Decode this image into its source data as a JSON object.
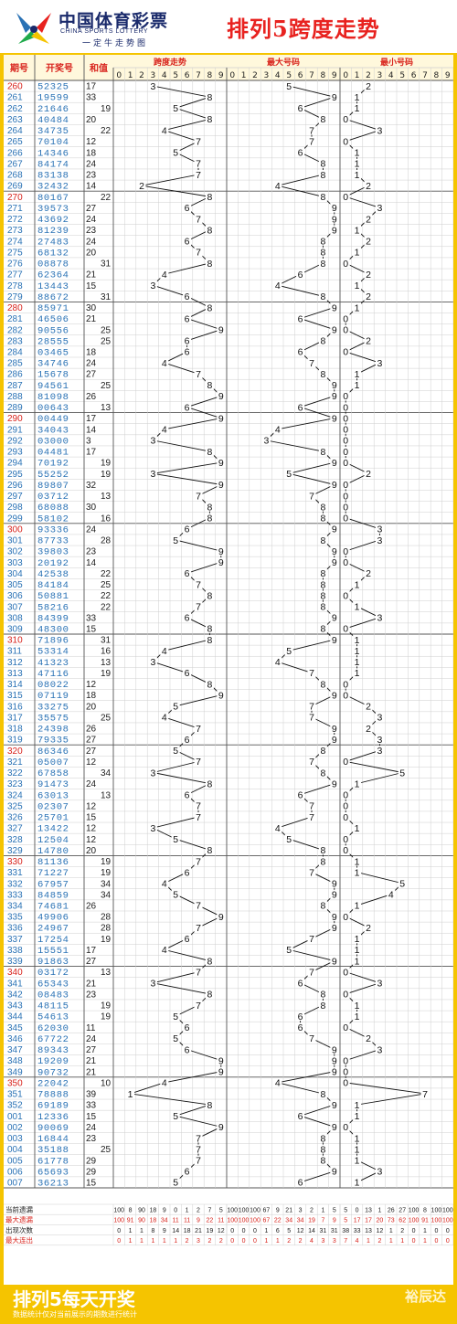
{
  "header": {
    "brand_cn": "中国体育彩票",
    "brand_en": "CHINA SPORTS LOTTERY",
    "slogan": "一定牛走势图",
    "title": "排列5跨度走势"
  },
  "footer": {
    "title": "排列5每天开奖",
    "note": "数据统计仅对当前展示的期数进行统计",
    "brand": "裕辰达"
  },
  "colors": {
    "accent": "#f5c400",
    "issue_blue": "#2a72b5",
    "issue_red": "#d8231c",
    "grid": "#cfcfcf",
    "dark": "#222222"
  },
  "chart_data": {
    "type": "table",
    "title": "排列5跨度走势",
    "columns": [
      "期号",
      "开奖号",
      "和值",
      "跨度走势",
      "最大号码",
      "最小号码"
    ],
    "digit_headers": [
      "0",
      "1",
      "2",
      "3",
      "4",
      "5",
      "6",
      "7",
      "8",
      "9"
    ],
    "rows": [
      {
        "issue": "260",
        "number": "52325",
        "sum": 17,
        "span": 3,
        "max": 5,
        "min": 2
      },
      {
        "issue": "261",
        "number": "19599",
        "sum": 33,
        "span": 8,
        "max": 9,
        "min": 1
      },
      {
        "issue": "262",
        "number": "21646",
        "sum": 19,
        "span": 5,
        "max": 6,
        "min": 1
      },
      {
        "issue": "263",
        "number": "40484",
        "sum": 20,
        "span": 8,
        "max": 8,
        "min": 0
      },
      {
        "issue": "264",
        "number": "34735",
        "sum": 22,
        "span": 4,
        "max": 7,
        "min": 3
      },
      {
        "issue": "265",
        "number": "70104",
        "sum": 12,
        "span": 7,
        "max": 7,
        "min": 0
      },
      {
        "issue": "266",
        "number": "14346",
        "sum": 18,
        "span": 5,
        "max": 6,
        "min": 1
      },
      {
        "issue": "267",
        "number": "84174",
        "sum": 24,
        "span": 7,
        "max": 8,
        "min": 1
      },
      {
        "issue": "268",
        "number": "83138",
        "sum": 23,
        "span": 7,
        "max": 8,
        "min": 1
      },
      {
        "issue": "269",
        "number": "32432",
        "sum": 14,
        "span": 2,
        "max": 4,
        "min": 2
      },
      {
        "issue": "270",
        "number": "80167",
        "sum": 22,
        "span": 8,
        "max": 8,
        "min": 0
      },
      {
        "issue": "271",
        "number": "39573",
        "sum": 27,
        "span": 6,
        "max": 9,
        "min": 3
      },
      {
        "issue": "272",
        "number": "43692",
        "sum": 24,
        "span": 7,
        "max": 9,
        "min": 2
      },
      {
        "issue": "273",
        "number": "81239",
        "sum": 23,
        "span": 8,
        "max": 9,
        "min": 1
      },
      {
        "issue": "274",
        "number": "27483",
        "sum": 24,
        "span": 6,
        "max": 8,
        "min": 2
      },
      {
        "issue": "275",
        "number": "68132",
        "sum": 20,
        "span": 7,
        "max": 8,
        "min": 1
      },
      {
        "issue": "276",
        "number": "08878",
        "sum": 31,
        "span": 8,
        "max": 8,
        "min": 0
      },
      {
        "issue": "277",
        "number": "62364",
        "sum": 21,
        "span": 4,
        "max": 6,
        "min": 2
      },
      {
        "issue": "278",
        "number": "13443",
        "sum": 15,
        "span": 3,
        "max": 4,
        "min": 1
      },
      {
        "issue": "279",
        "number": "88672",
        "sum": 31,
        "span": 6,
        "max": 8,
        "min": 2
      },
      {
        "issue": "280",
        "number": "85971",
        "sum": 30,
        "span": 8,
        "max": 9,
        "min": 1
      },
      {
        "issue": "281",
        "number": "46506",
        "sum": 21,
        "span": 6,
        "max": 6,
        "min": 0
      },
      {
        "issue": "282",
        "number": "90556",
        "sum": 25,
        "span": 9,
        "max": 9,
        "min": 0
      },
      {
        "issue": "283",
        "number": "28555",
        "sum": 25,
        "span": 6,
        "max": 8,
        "min": 2
      },
      {
        "issue": "284",
        "number": "03465",
        "sum": 18,
        "span": 6,
        "max": 6,
        "min": 0
      },
      {
        "issue": "285",
        "number": "34746",
        "sum": 24,
        "span": 4,
        "max": 7,
        "min": 3
      },
      {
        "issue": "286",
        "number": "15678",
        "sum": 27,
        "span": 7,
        "max": 8,
        "min": 1
      },
      {
        "issue": "287",
        "number": "94561",
        "sum": 25,
        "span": 8,
        "max": 9,
        "min": 1
      },
      {
        "issue": "288",
        "number": "81098",
        "sum": 26,
        "span": 9,
        "max": 9,
        "min": 0
      },
      {
        "issue": "289",
        "number": "00643",
        "sum": 13,
        "span": 6,
        "max": 6,
        "min": 0
      },
      {
        "issue": "290",
        "number": "00449",
        "sum": 17,
        "span": 9,
        "max": 9,
        "min": 0
      },
      {
        "issue": "291",
        "number": "34043",
        "sum": 14,
        "span": 4,
        "max": 4,
        "min": 0
      },
      {
        "issue": "292",
        "number": "03000",
        "sum": 3,
        "span": 3,
        "max": 3,
        "min": 0
      },
      {
        "issue": "293",
        "number": "04481",
        "sum": 17,
        "span": 8,
        "max": 8,
        "min": 0
      },
      {
        "issue": "294",
        "number": "70192",
        "sum": 19,
        "span": 9,
        "max": 9,
        "min": 0
      },
      {
        "issue": "295",
        "number": "55252",
        "sum": 19,
        "span": 3,
        "max": 5,
        "min": 2
      },
      {
        "issue": "296",
        "number": "89807",
        "sum": 32,
        "span": 9,
        "max": 9,
        "min": 0
      },
      {
        "issue": "297",
        "number": "03712",
        "sum": 13,
        "span": 7,
        "max": 7,
        "min": 0
      },
      {
        "issue": "298",
        "number": "68088",
        "sum": 30,
        "span": 8,
        "max": 8,
        "min": 0
      },
      {
        "issue": "299",
        "number": "58102",
        "sum": 16,
        "span": 8,
        "max": 8,
        "min": 0
      },
      {
        "issue": "300",
        "number": "93336",
        "sum": 24,
        "span": 6,
        "max": 9,
        "min": 3
      },
      {
        "issue": "301",
        "number": "87733",
        "sum": 28,
        "span": 5,
        "max": 8,
        "min": 3
      },
      {
        "issue": "302",
        "number": "39803",
        "sum": 23,
        "span": 9,
        "max": 9,
        "min": 0
      },
      {
        "issue": "303",
        "number": "20192",
        "sum": 14,
        "span": 9,
        "max": 9,
        "min": 0
      },
      {
        "issue": "304",
        "number": "42538",
        "sum": 22,
        "span": 6,
        "max": 8,
        "min": 2
      },
      {
        "issue": "305",
        "number": "84184",
        "sum": 25,
        "span": 7,
        "max": 8,
        "min": 1
      },
      {
        "issue": "306",
        "number": "50881",
        "sum": 22,
        "span": 8,
        "max": 8,
        "min": 0
      },
      {
        "issue": "307",
        "number": "58216",
        "sum": 22,
        "span": 7,
        "max": 8,
        "min": 1
      },
      {
        "issue": "308",
        "number": "84399",
        "sum": 33,
        "span": 6,
        "max": 9,
        "min": 3
      },
      {
        "issue": "309",
        "number": "48300",
        "sum": 15,
        "span": 8,
        "max": 8,
        "min": 0
      },
      {
        "issue": "310",
        "number": "71896",
        "sum": 31,
        "span": 8,
        "max": 9,
        "min": 1
      },
      {
        "issue": "311",
        "number": "53314",
        "sum": 16,
        "span": 4,
        "max": 5,
        "min": 1
      },
      {
        "issue": "312",
        "number": "41323",
        "sum": 13,
        "span": 3,
        "max": 4,
        "min": 1
      },
      {
        "issue": "313",
        "number": "47116",
        "sum": 19,
        "span": 6,
        "max": 7,
        "min": 1
      },
      {
        "issue": "314",
        "number": "08022",
        "sum": 12,
        "span": 8,
        "max": 8,
        "min": 0
      },
      {
        "issue": "315",
        "number": "07119",
        "sum": 18,
        "span": 9,
        "max": 9,
        "min": 0
      },
      {
        "issue": "316",
        "number": "33275",
        "sum": 20,
        "span": 5,
        "max": 7,
        "min": 2
      },
      {
        "issue": "317",
        "number": "35575",
        "sum": 25,
        "span": 4,
        "max": 7,
        "min": 3
      },
      {
        "issue": "318",
        "number": "24398",
        "sum": 26,
        "span": 7,
        "max": 9,
        "min": 2
      },
      {
        "issue": "319",
        "number": "79335",
        "sum": 27,
        "span": 6,
        "max": 9,
        "min": 3
      },
      {
        "issue": "320",
        "number": "86346",
        "sum": 27,
        "span": 5,
        "max": 8,
        "min": 3
      },
      {
        "issue": "321",
        "number": "05007",
        "sum": 12,
        "span": 7,
        "max": 7,
        "min": 0
      },
      {
        "issue": "322",
        "number": "67858",
        "sum": 34,
        "span": 3,
        "max": 8,
        "min": 5
      },
      {
        "issue": "323",
        "number": "91473",
        "sum": 24,
        "span": 8,
        "max": 9,
        "min": 1
      },
      {
        "issue": "324",
        "number": "63013",
        "sum": 13,
        "span": 6,
        "max": 6,
        "min": 0
      },
      {
        "issue": "325",
        "number": "02307",
        "sum": 12,
        "span": 7,
        "max": 7,
        "min": 0
      },
      {
        "issue": "326",
        "number": "25701",
        "sum": 15,
        "span": 7,
        "max": 7,
        "min": 0
      },
      {
        "issue": "327",
        "number": "13422",
        "sum": 12,
        "span": 3,
        "max": 4,
        "min": 1
      },
      {
        "issue": "328",
        "number": "12504",
        "sum": 12,
        "span": 5,
        "max": 5,
        "min": 0
      },
      {
        "issue": "329",
        "number": "14780",
        "sum": 20,
        "span": 8,
        "max": 8,
        "min": 0
      },
      {
        "issue": "330",
        "number": "81136",
        "sum": 19,
        "span": 7,
        "max": 8,
        "min": 1
      },
      {
        "issue": "331",
        "number": "71227",
        "sum": 19,
        "span": 6,
        "max": 7,
        "min": 1
      },
      {
        "issue": "332",
        "number": "67957",
        "sum": 34,
        "span": 4,
        "max": 9,
        "min": 5
      },
      {
        "issue": "333",
        "number": "84859",
        "sum": 34,
        "span": 5,
        "max": 9,
        "min": 4
      },
      {
        "issue": "334",
        "number": "74681",
        "sum": 26,
        "span": 7,
        "max": 8,
        "min": 1
      },
      {
        "issue": "335",
        "number": "49906",
        "sum": 28,
        "span": 9,
        "max": 9,
        "min": 0
      },
      {
        "issue": "336",
        "number": "24967",
        "sum": 28,
        "span": 7,
        "max": 9,
        "min": 2
      },
      {
        "issue": "337",
        "number": "17254",
        "sum": 19,
        "span": 6,
        "max": 7,
        "min": 1
      },
      {
        "issue": "338",
        "number": "15551",
        "sum": 17,
        "span": 4,
        "max": 5,
        "min": 1
      },
      {
        "issue": "339",
        "number": "91863",
        "sum": 27,
        "span": 8,
        "max": 9,
        "min": 1
      },
      {
        "issue": "340",
        "number": "03172",
        "sum": 13,
        "span": 7,
        "max": 7,
        "min": 0
      },
      {
        "issue": "341",
        "number": "65343",
        "sum": 21,
        "span": 3,
        "max": 6,
        "min": 3
      },
      {
        "issue": "342",
        "number": "08483",
        "sum": 23,
        "span": 8,
        "max": 8,
        "min": 0
      },
      {
        "issue": "343",
        "number": "48115",
        "sum": 19,
        "span": 7,
        "max": 8,
        "min": 1
      },
      {
        "issue": "344",
        "number": "54613",
        "sum": 19,
        "span": 5,
        "max": 6,
        "min": 1
      },
      {
        "issue": "345",
        "number": "62030",
        "sum": 11,
        "span": 6,
        "max": 6,
        "min": 0
      },
      {
        "issue": "346",
        "number": "67722",
        "sum": 24,
        "span": 5,
        "max": 7,
        "min": 2
      },
      {
        "issue": "347",
        "number": "89343",
        "sum": 27,
        "span": 6,
        "max": 9,
        "min": 3
      },
      {
        "issue": "348",
        "number": "19209",
        "sum": 21,
        "span": 9,
        "max": 9,
        "min": 0
      },
      {
        "issue": "349",
        "number": "90732",
        "sum": 21,
        "span": 9,
        "max": 9,
        "min": 0
      },
      {
        "issue": "350",
        "number": "22042",
        "sum": 10,
        "span": 4,
        "max": 4,
        "min": 0
      },
      {
        "issue": "351",
        "number": "78888",
        "sum": 39,
        "span": 1,
        "max": 8,
        "min": 7
      },
      {
        "issue": "352",
        "number": "69189",
        "sum": 33,
        "span": 8,
        "max": 9,
        "min": 1
      },
      {
        "issue": "001",
        "number": "12336",
        "sum": 15,
        "span": 5,
        "max": 6,
        "min": 1
      },
      {
        "issue": "002",
        "number": "90069",
        "sum": 24,
        "span": 9,
        "max": 9,
        "min": 0
      },
      {
        "issue": "003",
        "number": "16844",
        "sum": 23,
        "span": 7,
        "max": 8,
        "min": 1
      },
      {
        "issue": "004",
        "number": "35188",
        "sum": 25,
        "span": 7,
        "max": 8,
        "min": 1
      },
      {
        "issue": "005",
        "number": "61778",
        "sum": 29,
        "span": 7,
        "max": 8,
        "min": 1
      },
      {
        "issue": "006",
        "number": "65693",
        "sum": 29,
        "span": 6,
        "max": 9,
        "min": 3
      },
      {
        "issue": "007",
        "number": "36213",
        "sum": 15,
        "span": 5,
        "max": 6,
        "min": 1
      }
    ],
    "stats": [
      {
        "label": "当前遗漏",
        "span": [
          "100",
          "8",
          "90",
          "18",
          "9",
          "0",
          "1",
          "2",
          "7",
          "5"
        ],
        "max": [
          "100",
          "100",
          "100",
          "67",
          "9",
          "21",
          "3",
          "2",
          "1",
          "5"
        ],
        "min": [
          "5",
          "0",
          "13",
          "1",
          "26",
          "27",
          "100",
          "8",
          "100",
          "100"
        ]
      },
      {
        "label": "最大遗漏",
        "span": [
          "100",
          "91",
          "90",
          "18",
          "34",
          "11",
          "11",
          "9",
          "22",
          "11"
        ],
        "max": [
          "100",
          "100",
          "100",
          "67",
          "22",
          "34",
          "34",
          "19",
          "7",
          "9"
        ],
        "min": [
          "5",
          "17",
          "17",
          "20",
          "73",
          "62",
          "100",
          "91",
          "100",
          "100"
        ]
      },
      {
        "label": "出现次数",
        "span": [
          "0",
          "1",
          "1",
          "8",
          "9",
          "14",
          "18",
          "21",
          "19",
          "12"
        ],
        "max": [
          "0",
          "0",
          "0",
          "1",
          "6",
          "5",
          "12",
          "14",
          "31",
          "31"
        ],
        "min": [
          "38",
          "33",
          "13",
          "12",
          "1",
          "2",
          "0",
          "1",
          "0",
          "0"
        ]
      },
      {
        "label": "最大连出",
        "span": [
          "0",
          "1",
          "1",
          "1",
          "1",
          "1",
          "2",
          "3",
          "2",
          "2"
        ],
        "max": [
          "0",
          "0",
          "0",
          "1",
          "1",
          "2",
          "2",
          "4",
          "3",
          "3"
        ],
        "min": [
          "7",
          "4",
          "1",
          "2",
          "1",
          "1",
          "0",
          "1",
          "0",
          "0"
        ]
      }
    ]
  }
}
